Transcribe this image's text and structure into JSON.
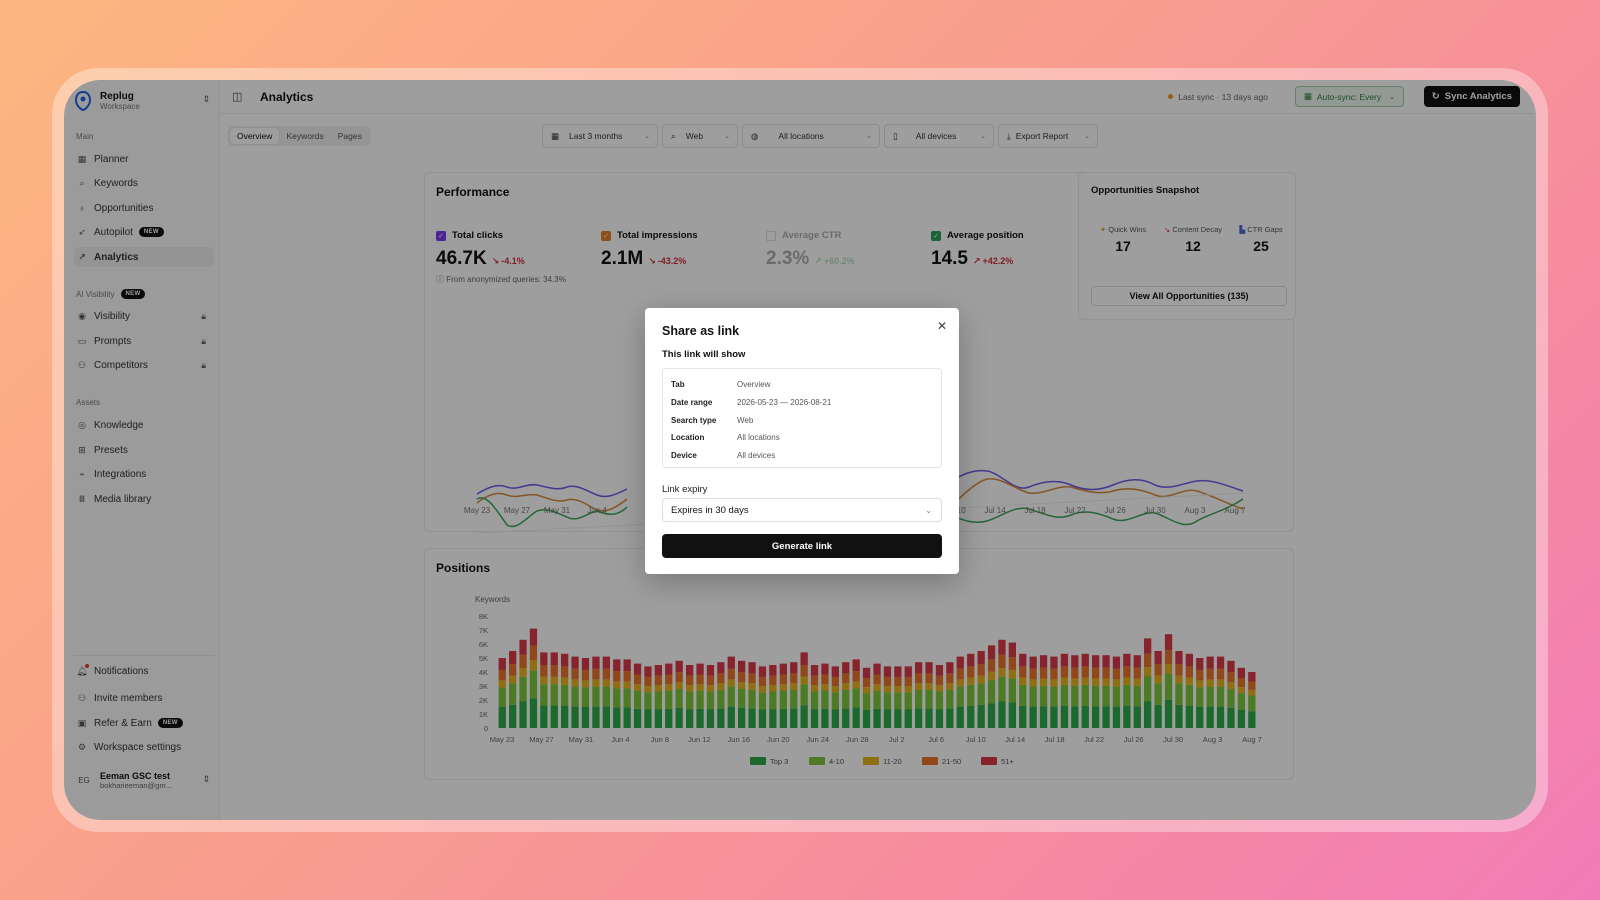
{
  "workspace": {
    "name": "Replug",
    "sub": "Workspace"
  },
  "sidebar": {
    "main_label": "Main",
    "main_items": [
      {
        "label": "Planner",
        "icon": "calendar-icon"
      },
      {
        "label": "Keywords",
        "icon": "search-icon"
      },
      {
        "label": "Opportunities",
        "icon": "lightbulb-icon"
      },
      {
        "label": "Autopilot",
        "icon": "rocket-icon",
        "badge": "NEW"
      },
      {
        "label": "Analytics",
        "icon": "chart-line-icon",
        "active": true
      }
    ],
    "ai_label": "AI Visibility",
    "ai_badge": "NEW",
    "ai_items": [
      {
        "label": "Visibility",
        "icon": "eye-icon"
      },
      {
        "label": "Prompts",
        "icon": "message-icon"
      },
      {
        "label": "Competitors",
        "icon": "users-icon"
      }
    ],
    "assets_label": "Assets",
    "assets_items": [
      {
        "label": "Knowledge",
        "icon": "book-icon"
      },
      {
        "label": "Presets",
        "icon": "grid-icon"
      },
      {
        "label": "Integrations",
        "icon": "plug-icon"
      },
      {
        "label": "Media library",
        "icon": "library-icon"
      }
    ],
    "bottom_items": [
      {
        "label": "Notifications",
        "icon": "bell-icon"
      },
      {
        "label": "Invite members",
        "icon": "user-plus-icon"
      },
      {
        "label": "Refer & Earn",
        "icon": "gift-icon",
        "badge": "NEW"
      },
      {
        "label": "Workspace settings",
        "icon": "gear-icon"
      }
    ],
    "user": {
      "initials": "EG",
      "name": "Eeman GSC test",
      "email": "bokharieeman@gm..."
    }
  },
  "header": {
    "title": "Analytics",
    "last_sync": "Last sync · 13 days ago",
    "auto_sync": "Auto-sync: Every",
    "sync_button": "Sync Analytics"
  },
  "toolbar": {
    "tabs": [
      "Overview",
      "Keywords",
      "Pages"
    ],
    "date_range": "Last 3 months",
    "search_type": "Web",
    "location": "All locations",
    "device": "All devices",
    "export": "Export Report"
  },
  "performance": {
    "title": "Performance",
    "metrics": [
      {
        "label": "Total clicks",
        "value": "46.7K",
        "change": "-4.1%",
        "color": "#7c3aed"
      },
      {
        "label": "Total impressions",
        "value": "2.1M",
        "change": "-43.2%",
        "color": "#e0822a"
      },
      {
        "label": "Average CTR",
        "value": "2.3%",
        "change": "+60.2%",
        "color": "#bbbbbb"
      },
      {
        "label": "Average position",
        "value": "14.5",
        "change": "+42.2%",
        "color": "#2e9e57"
      }
    ],
    "anon_note": "From anonymized queries: 34.3%",
    "x_labels": [
      "May 23",
      "May 27",
      "May 31",
      "Jun 4",
      "Jul 10",
      "Jul 14",
      "Jul 18",
      "Jul 22",
      "Jul 26",
      "Jul 30",
      "Aug 3",
      "Aug 7"
    ]
  },
  "snapshot": {
    "title": "Opportunities Snapshot",
    "items": [
      {
        "label": "Quick Wins",
        "value": "17"
      },
      {
        "label": "Content Decay",
        "value": "12"
      },
      {
        "label": "CTR Gaps",
        "value": "25"
      }
    ],
    "view_all": "View All Opportunities (135)"
  },
  "positions": {
    "title": "Positions",
    "y_label": "Keywords",
    "y_ticks": [
      "8K",
      "7K",
      "6K",
      "5K",
      "4K",
      "3K",
      "2K",
      "1K",
      "0"
    ],
    "x_labels": [
      "May 23",
      "May 27",
      "May 31",
      "Jun 4",
      "Jun 8",
      "Jun 12",
      "Jun 16",
      "Jun 20",
      "Jun 24",
      "Jun 28",
      "Jul 2",
      "Jul 6",
      "Jul 10",
      "Jul 14",
      "Jul 18",
      "Jul 22",
      "Jul 26",
      "Jul 30",
      "Aug 3",
      "Aug 7"
    ],
    "legend": [
      {
        "label": "Top 3",
        "color": "#2eaa4a"
      },
      {
        "label": "4-10",
        "color": "#7cc63a"
      },
      {
        "label": "11-20",
        "color": "#e8b41f"
      },
      {
        "label": "21-50",
        "color": "#e8742a"
      },
      {
        "label": "51+",
        "color": "#d8394a"
      }
    ]
  },
  "chart_data": {
    "type": "bar",
    "stacked": true,
    "title": "Positions",
    "ylabel": "Keywords",
    "ylim": [
      0,
      8000
    ],
    "totals": [
      5000,
      5500,
      6300,
      7100,
      5400,
      5400,
      5300,
      5100,
      5000,
      5100,
      5100,
      4900,
      4900,
      4600,
      4400,
      4500,
      4600,
      4800,
      4500,
      4600,
      4500,
      4700,
      5100,
      4800,
      4700,
      4400,
      4500,
      4600,
      4700,
      5400,
      4500,
      4600,
      4400,
      4700,
      4900,
      4300,
      4600,
      4400,
      4400,
      4400,
      4700,
      4700,
      4500,
      4700,
      5100,
      5300,
      5500,
      5900,
      6300,
      6100,
      5300,
      5100,
      5200,
      5100,
      5300,
      5200,
      5300,
      5200,
      5200,
      5100,
      5300,
      5200,
      6400,
      5500,
      6700,
      5500,
      5300,
      5000,
      5100,
      5100,
      4800,
      4300,
      4000
    ],
    "segment_shares": {
      "Top 3": 0.3,
      "4-10": 0.28,
      "11-20": 0.1,
      "21-50": 0.15,
      "51+": 0.17
    }
  },
  "modal": {
    "title": "Share as link",
    "subtitle": "This link will show",
    "rows": [
      {
        "key": "Tab",
        "value": "Overview"
      },
      {
        "key": "Date range",
        "value": "2026-05-23 — 2026-08-21"
      },
      {
        "key": "Search type",
        "value": "Web"
      },
      {
        "key": "Location",
        "value": "All locations"
      },
      {
        "key": "Device",
        "value": "All devices"
      }
    ],
    "expiry_label": "Link expiry",
    "expiry_value": "Expires in 30 days",
    "generate": "Generate link"
  }
}
